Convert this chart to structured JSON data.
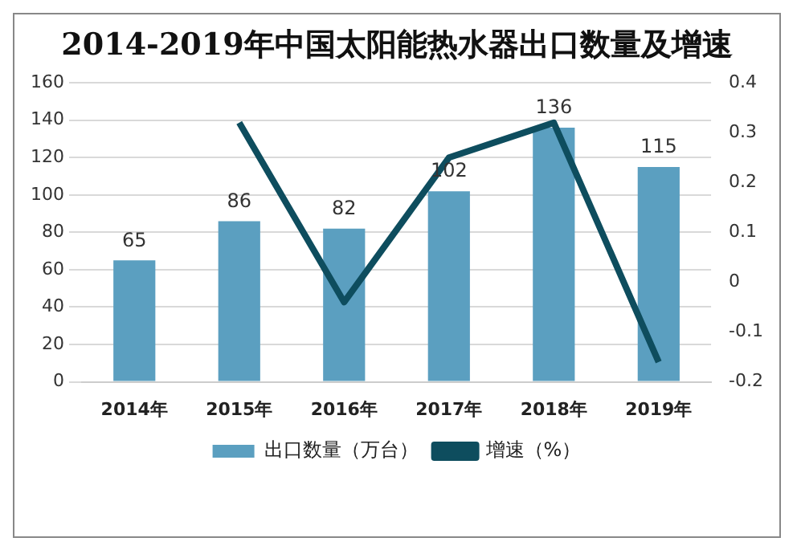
{
  "chart_data": {
    "type": "bar",
    "title": "2014-2019年中国太阳能热水器出口数量及增速",
    "categories": [
      "2014年",
      "2015年",
      "2016年",
      "2017年",
      "2018年",
      "2019年"
    ],
    "series": [
      {
        "name": "出口数量（万台）",
        "color": "#5b9fc0",
        "values": [
          65,
          86,
          82,
          102,
          136,
          115
        ],
        "value_labels": [
          "65",
          "86",
          "82",
          "102",
          "136",
          "115"
        ]
      },
      {
        "name": "增速（%）",
        "type": "line",
        "axis": "y2",
        "color": "#0e4d5e",
        "values": [
          null,
          0.32,
          -0.04,
          0.25,
          0.32,
          -0.16
        ]
      }
    ],
    "ylim": [
      0,
      160
    ],
    "yticks": [
      0,
      20,
      40,
      60,
      80,
      100,
      120,
      140,
      160
    ],
    "y2lim": [
      -0.2,
      0.4
    ],
    "y2ticks": [
      -0.2,
      -0.1,
      0,
      0.1,
      0.2,
      0.3,
      0.4
    ],
    "grid": "y",
    "legend": "bottom",
    "marker": "none"
  }
}
